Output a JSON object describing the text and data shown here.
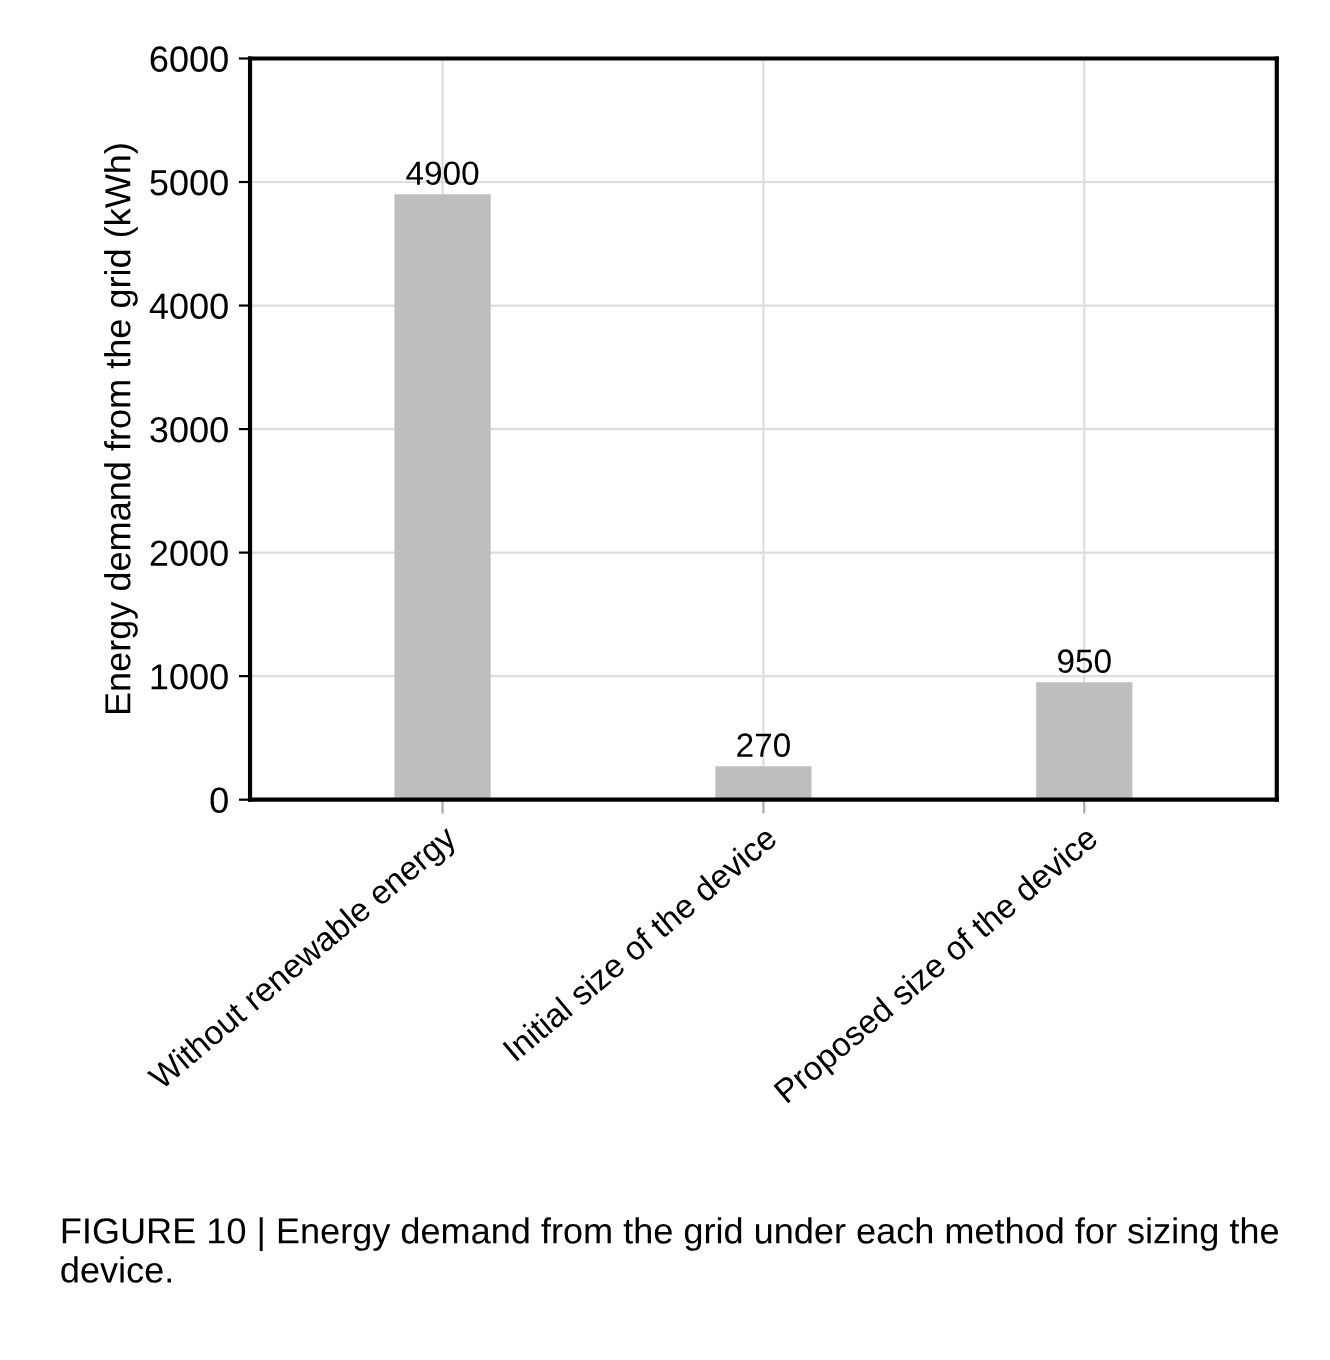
{
  "chart_data": {
    "type": "bar",
    "categories": [
      "Without renewable energy",
      "Initial size of the device",
      "Proposed size of the device"
    ],
    "values": [
      4900,
      270,
      950
    ],
    "color": "#bebebe",
    "ylabel": "Energy demand from the grid (kWh)",
    "ylim": [
      0,
      6000
    ],
    "yticks": [
      0,
      1000,
      2000,
      3000,
      4000,
      5000,
      6000
    ],
    "grid": true,
    "data_labels": true,
    "annotations": [
      "FIGURE 10 | Energy demand from the grid under each method for sizing the device."
    ]
  }
}
